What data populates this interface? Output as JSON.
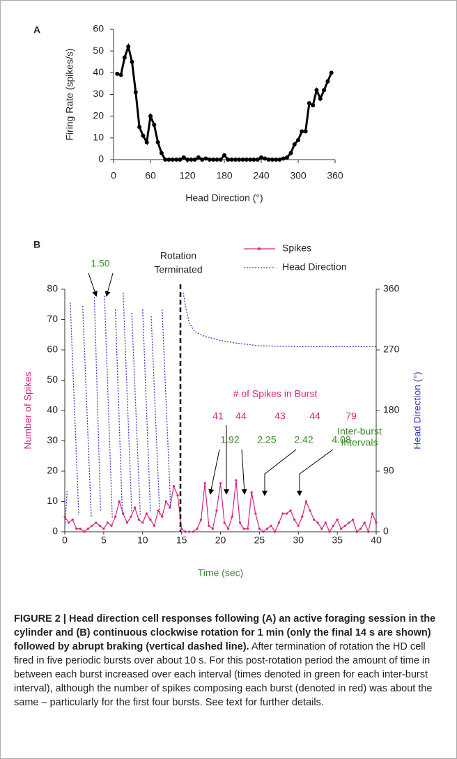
{
  "chart_data": [
    {
      "type": "line",
      "panel": "A",
      "x_label": "Head Direction (°)",
      "y_label": "Firing Rate (spikes/s)",
      "xlim": [
        0,
        360
      ],
      "ylim": [
        0,
        60
      ],
      "xticks": [
        0,
        60,
        120,
        180,
        240,
        300,
        360
      ],
      "yticks": [
        0,
        10,
        20,
        30,
        40,
        50,
        60
      ],
      "series": [
        {
          "name": "Firing Rate",
          "color": "#000000",
          "x": [
            6,
            12,
            18,
            24,
            30,
            36,
            42,
            48,
            54,
            60,
            66,
            72,
            78,
            84,
            90,
            96,
            102,
            108,
            114,
            120,
            126,
            132,
            138,
            144,
            150,
            156,
            162,
            168,
            174,
            180,
            186,
            192,
            198,
            204,
            210,
            216,
            222,
            228,
            234,
            240,
            246,
            252,
            258,
            264,
            270,
            276,
            282,
            288,
            294,
            300,
            306,
            312,
            318,
            324,
            330,
            336,
            342,
            348,
            354
          ],
          "values": [
            39.5,
            39,
            47,
            52,
            45,
            31,
            15,
            11,
            8,
            20,
            16,
            8,
            3,
            0,
            0,
            0,
            0,
            0,
            1,
            0,
            0,
            0,
            1,
            0,
            0.5,
            0,
            0,
            0,
            0,
            2,
            0,
            0,
            0,
            0,
            0,
            0,
            0,
            0,
            0,
            1,
            0.5,
            0,
            0,
            0,
            0,
            0.5,
            1,
            3,
            7,
            9,
            13,
            13,
            26,
            25,
            32,
            28,
            32,
            36,
            40
          ]
        }
      ]
    },
    {
      "type": "line",
      "panel": "B",
      "x_label": "Time (sec)",
      "y_label": "Number of Spikes",
      "y2_label": "Head Direction (°)",
      "xlim": [
        0,
        40
      ],
      "ylim": [
        0,
        80
      ],
      "y2lim": [
        0,
        360
      ],
      "xticks": [
        0,
        5,
        10,
        15,
        20,
        25,
        30,
        35,
        40
      ],
      "yticks": [
        0,
        10,
        20,
        30,
        40,
        50,
        60,
        70,
        80
      ],
      "y2ticks": [
        0,
        90,
        180,
        270,
        360
      ],
      "legend": "top-right",
      "series": [
        {
          "name": "Spikes",
          "color": "#d6267a",
          "x": [
            0,
            0.5,
            1,
            1.5,
            2,
            2.5,
            3,
            3.5,
            4,
            4.5,
            5,
            5.5,
            6,
            6.5,
            7,
            7.5,
            8,
            8.5,
            9,
            9.5,
            10,
            10.5,
            11,
            11.5,
            12,
            12.5,
            13,
            13.5,
            14,
            14.5,
            15,
            15.5,
            16,
            16.5,
            17,
            17.5,
            18,
            18.5,
            19,
            19.5,
            20,
            20.5,
            21,
            21.5,
            22,
            22.5,
            23,
            23.5,
            24,
            24.5,
            25,
            25.5,
            26,
            26.5,
            27,
            27.5,
            28,
            28.5,
            29,
            29.5,
            30,
            30.5,
            31,
            31.5,
            32,
            32.5,
            33,
            33.5,
            34,
            34.5,
            35,
            35.5,
            36,
            36.5,
            37,
            37.5,
            38,
            38.5,
            39,
            39.5,
            40
          ],
          "values": [
            5,
            3,
            4,
            1,
            1,
            0,
            1,
            2,
            3,
            2,
            1,
            3,
            2,
            5,
            10,
            6,
            3,
            5,
            8,
            4,
            3,
            6,
            4,
            2,
            7,
            5,
            10,
            8,
            15,
            12,
            1,
            0,
            0,
            0,
            1,
            4,
            16,
            2,
            1,
            7,
            16,
            3,
            1,
            5,
            17,
            3,
            1,
            1,
            13,
            6,
            1,
            0,
            1,
            2,
            0,
            3,
            6,
            6,
            7,
            4,
            2,
            5,
            10,
            7,
            4,
            3,
            1,
            3,
            0,
            2,
            4,
            1,
            2,
            3,
            4,
            0,
            1,
            3,
            0,
            6,
            3
          ]
        },
        {
          "name": "Head Direction",
          "color": "#3a3ac8",
          "axis": "y2",
          "x": [
            0,
            0.3,
            null,
            0.7,
            1.8,
            null,
            2.3,
            3.4,
            null,
            3.8,
            4.6,
            null,
            5.1,
            6.1,
            null,
            6.5,
            7.4,
            null,
            7.5,
            8.6,
            null,
            8.6,
            9.7,
            null,
            10.0,
            11.0,
            null,
            11.1,
            12.2,
            null,
            12.5,
            13.6,
            null,
            15.2,
            15.6,
            16.0,
            16.5,
            17.0,
            18.0,
            19.0,
            20.0,
            22.0,
            25.0,
            30.0,
            35.0,
            40.0
          ],
          "values": [
            5,
            60,
            null,
            340,
            25,
            null,
            335,
            22,
            null,
            348,
            30,
            null,
            350,
            20,
            null,
            330,
            25,
            null,
            355,
            30,
            null,
            325,
            25,
            null,
            330,
            30,
            null,
            320,
            25,
            null,
            330,
            35,
            null,
            355,
            330,
            310,
            300,
            295,
            290,
            287,
            284,
            280,
            276,
            275,
            275,
            275
          ]
        }
      ]
    }
  ],
  "annotations": {
    "interval_first": "1.50",
    "rotation": [
      "Rotation",
      "Terminated"
    ],
    "spikes_title": "# of Spikes in Burst",
    "burst_counts": [
      "41",
      "44",
      "43",
      "44",
      "79"
    ],
    "intervals": [
      "1.92",
      "2.25",
      "2.42",
      "4.08"
    ],
    "interval_title": [
      "Inter-burst",
      "Intervals"
    ]
  },
  "caption": {
    "bold": "FIGURE 2 | Head direction cell responses following (A) an active foraging session in the cylinder and (B) continuous clockwise rotation for 1 min (only the final 14 s are shown) followed by abrupt braking (vertical dashed line).",
    "text": " After termination of rotation the HD cell fired in five periodic bursts over about 10 s. For this post-rotation period the amount of time in between each burst increased over each interval (times denoted in green for each inter-burst interval), although the number of spikes composing each burst (denoted in red) was about the same – particularly for the first four bursts. See text for further details."
  }
}
